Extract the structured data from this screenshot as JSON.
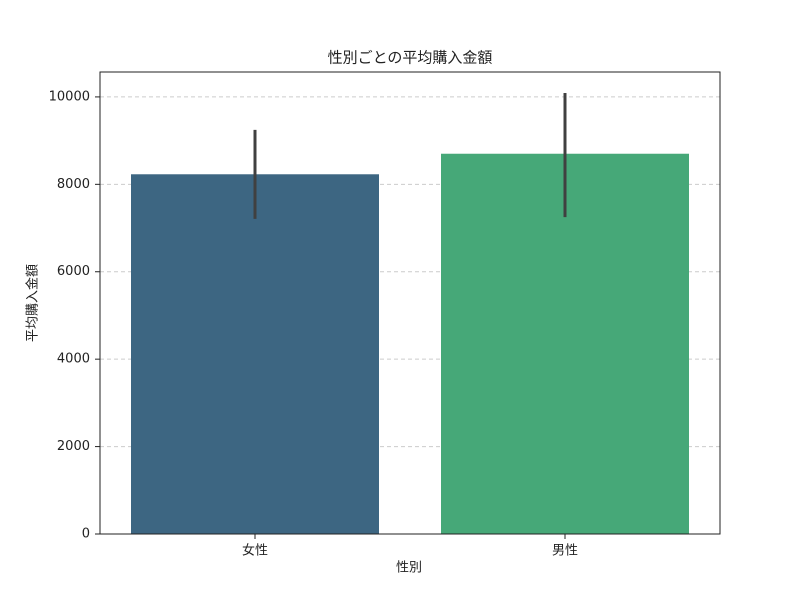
{
  "chart_data": {
    "type": "bar",
    "title": "性別ごとの平均購入金額",
    "x_label": "性別",
    "y_label": "平均購入金額",
    "categories": [
      "女性",
      "男性"
    ],
    "values": [
      8230,
      8700
    ],
    "ci_lower": [
      7210,
      7250
    ],
    "ci_upper": [
      9245,
      10090
    ],
    "colors": [
      "#3d6682",
      "#46a878"
    ],
    "error_color": "#404040",
    "ylim": [
      0,
      10570
    ],
    "yticks": [
      0,
      2000,
      4000,
      6000,
      8000,
      10000
    ],
    "grid": true
  }
}
